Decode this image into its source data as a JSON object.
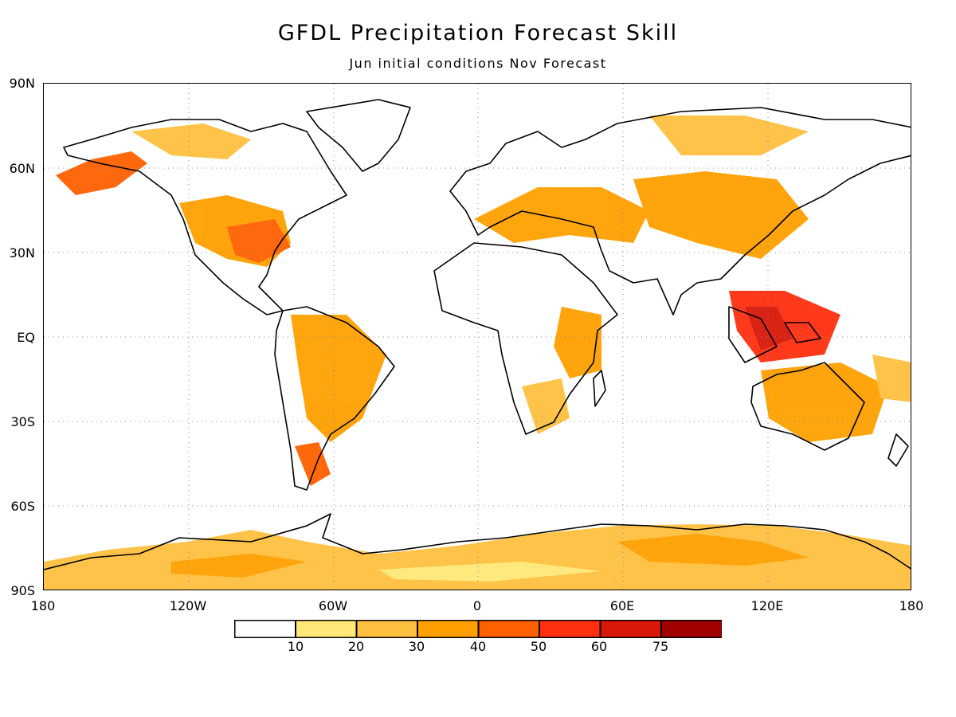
{
  "title": "GFDL Precipitation Forecast Skill",
  "subtitle": "Jun initial conditions  Nov Forecast",
  "lat_labels": [
    "90N",
    "60N",
    "30N",
    "EQ",
    "30S",
    "60S",
    "90S"
  ],
  "lon_labels": [
    "180",
    "120W",
    "60W",
    "0",
    "60E",
    "120E",
    "180"
  ],
  "colorbar": {
    "ticks": [
      "10",
      "20",
      "30",
      "40",
      "50",
      "60",
      "75"
    ],
    "colors": [
      "#ffffff",
      "#ffe878",
      "#ffc040",
      "#ffa000",
      "#ff6000",
      "#ff3010",
      "#d81808",
      "#a00000"
    ]
  }
}
